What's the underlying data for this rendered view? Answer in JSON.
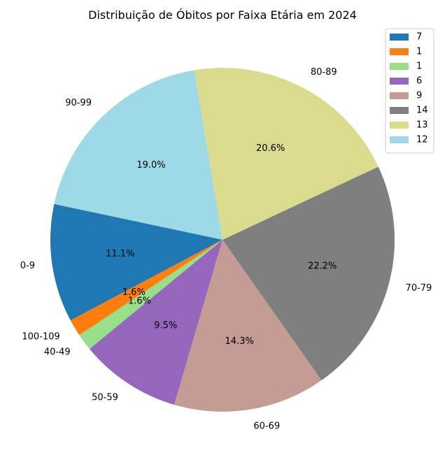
{
  "chart_data": {
    "type": "pie",
    "title": "Distribuição de Óbitos por Faixa Etária em 2024",
    "start_angle_deg": 168,
    "direction": "counterclockwise",
    "legend_position": "top-right",
    "slices": [
      {
        "label": "0-9",
        "value": 7,
        "pct_label": "11.1%",
        "legend": "7",
        "color": "#1f77b4"
      },
      {
        "label": "100-109",
        "value": 1,
        "pct_label": "1.6%",
        "legend": "1",
        "color": "#ff7f0e"
      },
      {
        "label": "40-49",
        "value": 1,
        "pct_label": "1.6%",
        "legend": "1",
        "color": "#98df8a"
      },
      {
        "label": "50-59",
        "value": 6,
        "pct_label": "9.5%",
        "legend": "6",
        "color": "#9467bd"
      },
      {
        "label": "60-69",
        "value": 9,
        "pct_label": "14.3%",
        "legend": "9",
        "color": "#c49c94"
      },
      {
        "label": "70-79",
        "value": 14,
        "pct_label": "22.2%",
        "legend": "14",
        "color": "#7f7f7f"
      },
      {
        "label": "80-89",
        "value": 13,
        "pct_label": "20.6%",
        "legend": "13",
        "color": "#dbdb8d"
      },
      {
        "label": "90-99",
        "value": 12,
        "pct_label": "19.0%",
        "legend": "12",
        "color": "#9edae5"
      }
    ]
  }
}
